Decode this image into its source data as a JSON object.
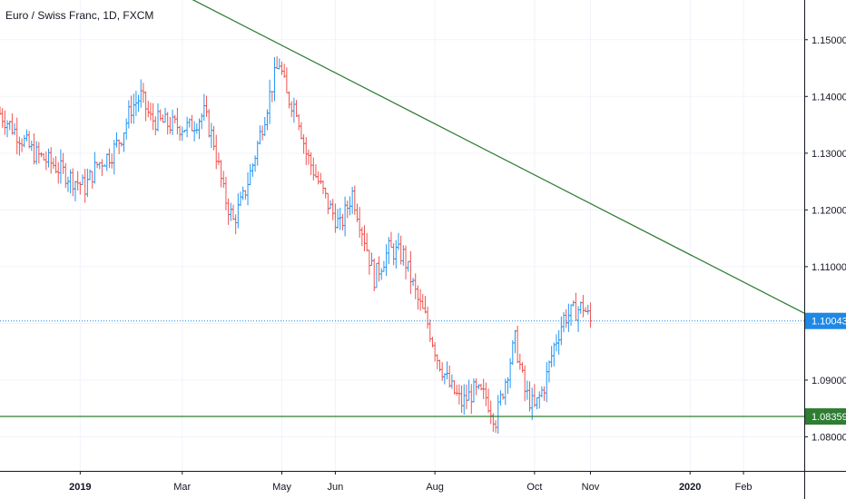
{
  "chart_data": {
    "type": "ohlc",
    "title": "Euro / Swiss Franc, 1D, FXCM",
    "ylim": [
      1.074,
      1.157
    ],
    "xlim": [
      0,
      331
    ],
    "grid": true,
    "y_ticks": [
      "1.15000",
      "1.14000",
      "1.13000",
      "1.12000",
      "1.11000",
      "1.10000",
      "1.09000",
      "1.08000"
    ],
    "x_ticks": [
      {
        "label": "2019",
        "day": 33,
        "year": true
      },
      {
        "label": "Mar",
        "day": 75,
        "year": false
      },
      {
        "label": "May",
        "day": 116,
        "year": false
      },
      {
        "label": "Jun",
        "day": 138,
        "year": false
      },
      {
        "label": "Aug",
        "day": 179,
        "year": false
      },
      {
        "label": "Oct",
        "day": 220,
        "year": false
      },
      {
        "label": "Nov",
        "day": 243,
        "year": false
      },
      {
        "label": "2020",
        "day": 284,
        "year": true
      },
      {
        "label": "Feb",
        "day": 306,
        "year": false
      }
    ],
    "price_path": [
      [
        0,
        1.137
      ],
      [
        8,
        1.133
      ],
      [
        14,
        1.13
      ],
      [
        22,
        1.128
      ],
      [
        28,
        1.126
      ],
      [
        35,
        1.124
      ],
      [
        40,
        1.128
      ],
      [
        46,
        1.13
      ],
      [
        50,
        1.133
      ],
      [
        54,
        1.138
      ],
      [
        58,
        1.14
      ],
      [
        62,
        1.136
      ],
      [
        70,
        1.135
      ],
      [
        78,
        1.1345
      ],
      [
        84,
        1.137
      ],
      [
        88,
        1.132
      ],
      [
        92,
        1.123
      ],
      [
        96,
        1.118
      ],
      [
        100,
        1.122
      ],
      [
        104,
        1.128
      ],
      [
        108,
        1.135
      ],
      [
        112,
        1.142
      ],
      [
        115,
        1.146
      ],
      [
        118,
        1.14
      ],
      [
        122,
        1.138
      ],
      [
        126,
        1.13
      ],
      [
        130,
        1.126
      ],
      [
        135,
        1.121
      ],
      [
        140,
        1.117
      ],
      [
        145,
        1.123
      ],
      [
        150,
        1.115
      ],
      [
        154,
        1.108
      ],
      [
        160,
        1.113
      ],
      [
        166,
        1.112
      ],
      [
        172,
        1.104
      ],
      [
        176,
        1.1
      ],
      [
        180,
        1.094
      ],
      [
        185,
        1.089
      ],
      [
        190,
        1.086
      ],
      [
        195,
        1.088
      ],
      [
        200,
        1.087
      ],
      [
        204,
        1.083
      ],
      [
        208,
        1.09
      ],
      [
        212,
        1.097
      ],
      [
        216,
        1.088
      ],
      [
        220,
        1.085
      ],
      [
        224,
        1.089
      ],
      [
        228,
        1.096
      ],
      [
        232,
        1.101
      ],
      [
        236,
        1.102
      ],
      [
        240,
        1.103
      ],
      [
        243,
        1.1004
      ]
    ],
    "trendline": {
      "start": [
        75,
        1.158
      ],
      "end": [
        331,
        1.1018
      ],
      "color": "#2e7d32"
    },
    "horizontal_levels": [
      {
        "value": 1.10043,
        "label": "1.10043",
        "style": "dotted",
        "color": "#1e88e5"
      },
      {
        "value": 1.08359,
        "label": "1.08359",
        "style": "solid",
        "color": "#2e7d32"
      }
    ],
    "colors": {
      "up": "#2196f3",
      "down": "#ef5350",
      "grid": "#f0f3fa",
      "axis": "#131722"
    }
  }
}
